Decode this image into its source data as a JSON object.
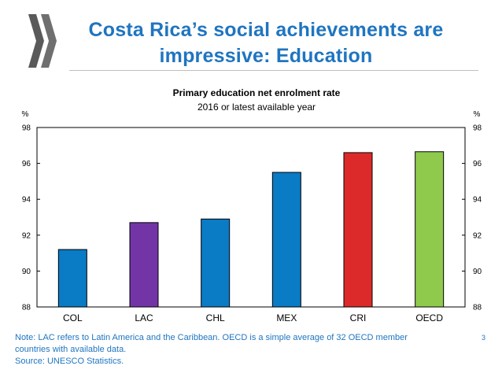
{
  "slide": {
    "title_line1": "Costa Rica’s social achievements are",
    "title_line2": "impressive: Education",
    "page_number": "3"
  },
  "note": {
    "line1": "Note: LAC refers to Latin America and the Caribbean. OECD is a simple average of 32 OECD member",
    "line2": "countries with available data.",
    "line3": "Source: UNESCO Statistics."
  },
  "colors": {
    "title": "#1f75c0",
    "logo": "#5a5a5a"
  },
  "chart_data": {
    "type": "bar",
    "title": "Primary education net enrolment rate",
    "subtitle": "2016 or latest available year",
    "ylabel_left": "%",
    "ylabel_right": "%",
    "categories": [
      "COL",
      "LAC",
      "CHL",
      "MEX",
      "CRI",
      "OECD"
    ],
    "values": [
      91.2,
      92.7,
      92.9,
      95.5,
      96.6,
      96.65
    ],
    "colors": [
      "#0a7bc5",
      "#7335a6",
      "#0a7bc5",
      "#0a7bc5",
      "#dc2a2b",
      "#8fca4d"
    ],
    "ylim": [
      88,
      98
    ],
    "yticks": [
      88,
      90,
      92,
      94,
      96,
      98
    ],
    "grid": false,
    "legend": "none"
  }
}
